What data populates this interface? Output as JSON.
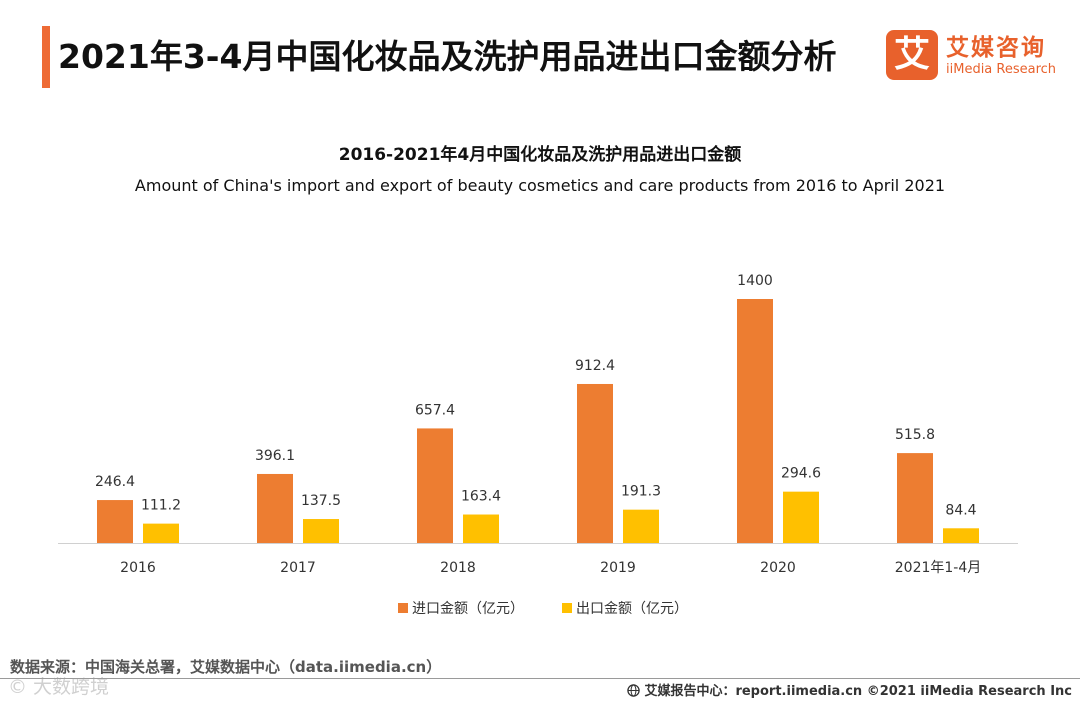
{
  "header": {
    "title": "2021年3-4月中国化妆品及洗护用品进出口金额分析",
    "logo_badge": "艾",
    "logo_cn": "艾媒咨询",
    "logo_en": "iiMedia Research"
  },
  "colors": {
    "accent": "#ee6b35",
    "import_bar": "#ed7d31",
    "export_bar": "#ffc000"
  },
  "chart_data": {
    "type": "bar",
    "title": "2016-2021年4月中国化妆品及洗护用品进出口金额",
    "subtitle": "Amount of China's import and export of beauty cosmetics and care products from 2016 to April 2021",
    "categories": [
      "2016",
      "2017",
      "2018",
      "2019",
      "2020",
      "2021年1-4月"
    ],
    "series": [
      {
        "name": "进口金额（亿元）",
        "values": [
          246.4,
          396.1,
          657.4,
          912.4,
          1400,
          515.8
        ],
        "labels": [
          "246.4",
          "396.1",
          "657.4",
          "912.4",
          "1400",
          "515.8"
        ]
      },
      {
        "name": "出口金额（亿元）",
        "values": [
          111.2,
          137.5,
          163.4,
          191.3,
          294.6,
          84.4
        ],
        "labels": [
          "111.2",
          "137.5",
          "163.4",
          "191.3",
          "294.6",
          "84.4"
        ]
      }
    ],
    "xlabel": "",
    "ylabel": "",
    "ylim": [
      0,
      1400
    ],
    "grid": false,
    "legend": "bottom-center"
  },
  "footer": {
    "source": "数据来源：中国海关总署，艾媒数据中心（data.iimedia.cn）",
    "watermark": "© 大数跨境",
    "report": "艾媒报告中心：report.iimedia.cn  ©2021  iiMedia Research  Inc"
  }
}
